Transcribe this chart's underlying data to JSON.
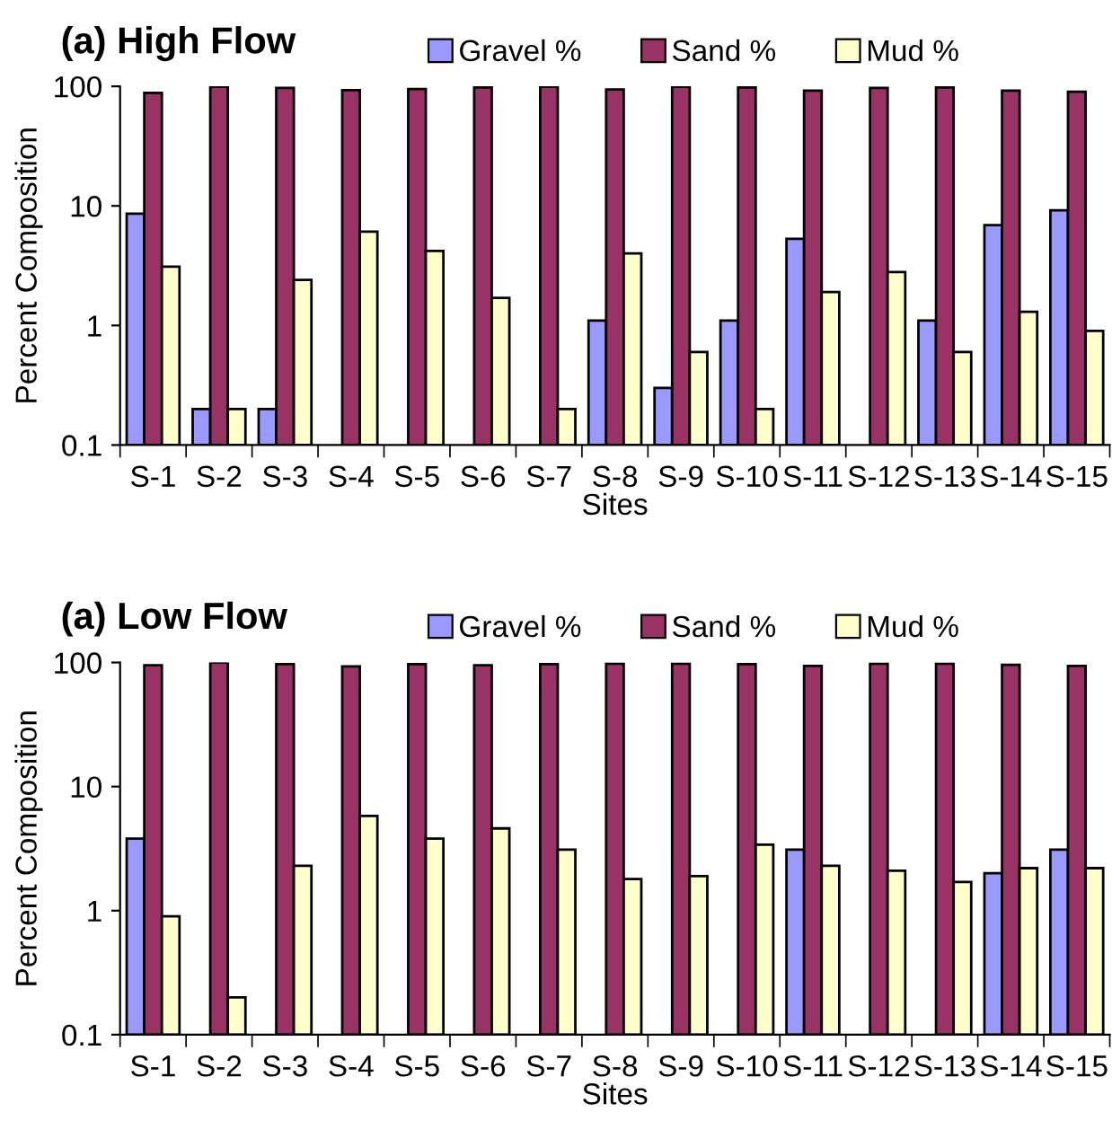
{
  "chart_data": [
    {
      "type": "bar",
      "title": "(a) High Flow",
      "xlabel": "Sites",
      "ylabel": "Percent Composition",
      "categories": [
        "S-1",
        "S-2",
        "S-3",
        "S-4",
        "S-5",
        "S-6",
        "S-7",
        "S-8",
        "S-9",
        "S-10",
        "S-11",
        "S-12",
        "S-13",
        "S-14",
        "S-15"
      ],
      "series": [
        {
          "name": "Gravel %",
          "color": "#9999ff",
          "values": [
            8.6,
            0.2,
            0.2,
            null,
            null,
            null,
            null,
            1.1,
            0.3,
            1.1,
            5.3,
            null,
            1.1,
            6.9,
            9.2
          ]
        },
        {
          "name": "Sand %",
          "color": "#993366",
          "values": [
            88,
            99,
            97,
            93,
            95,
            98,
            99,
            94,
            99,
            98,
            92,
            97,
            98,
            92,
            90
          ]
        },
        {
          "name": "Mud %",
          "color": "#ffffcc",
          "values": [
            3.1,
            0.2,
            2.4,
            6.1,
            4.2,
            1.7,
            0.2,
            4.0,
            0.6,
            0.2,
            1.9,
            2.8,
            0.6,
            1.3,
            0.9
          ]
        }
      ],
      "log": true,
      "ylim": [
        0.1,
        100
      ],
      "yticks": [
        0.1,
        1,
        10,
        100
      ],
      "grid": false,
      "legend": "top right"
    },
    {
      "type": "bar",
      "title": "(a) Low Flow",
      "xlabel": "Sites",
      "ylabel": "Percent Composition",
      "categories": [
        "S-1",
        "S-2",
        "S-3",
        "S-4",
        "S-5",
        "S-6",
        "S-7",
        "S-8",
        "S-9",
        "S-10",
        "S-11",
        "S-12",
        "S-13",
        "S-14",
        "S-15"
      ],
      "series": [
        {
          "name": "Gravel %",
          "color": "#9999ff",
          "values": [
            3.8,
            null,
            null,
            null,
            null,
            null,
            null,
            null,
            null,
            null,
            3.1,
            null,
            null,
            2.0,
            3.1
          ]
        },
        {
          "name": "Sand %",
          "color": "#993366",
          "values": [
            95,
            100,
            97,
            93,
            97,
            95,
            97,
            98,
            98,
            97,
            94,
            98,
            98,
            96,
            94
          ]
        },
        {
          "name": "Mud %",
          "color": "#ffffcc",
          "values": [
            0.9,
            0.2,
            2.3,
            5.8,
            3.8,
            4.6,
            3.1,
            1.8,
            1.9,
            3.4,
            2.3,
            2.1,
            1.7,
            2.2,
            2.2
          ]
        }
      ],
      "log": true,
      "ylim": [
        0.1,
        100
      ],
      "yticks": [
        0.1,
        1,
        10,
        100
      ],
      "grid": false,
      "legend": "top right"
    }
  ]
}
